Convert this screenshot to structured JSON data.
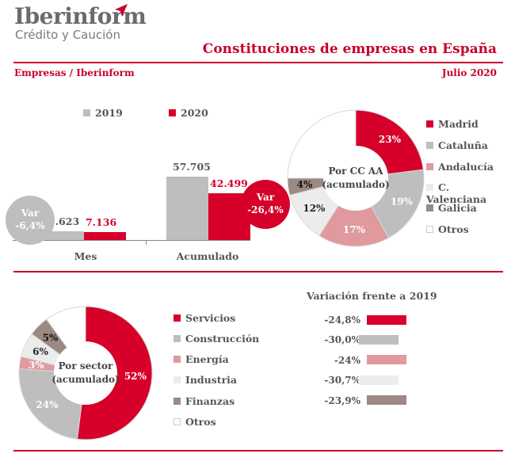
{
  "header": {
    "logo_main": "Iberinform",
    "logo_sub": "Crédito y Caución",
    "title": "Constituciones de empresas en España",
    "source": "Empresas / Iberinform",
    "date": "Julio 2020"
  },
  "colors": {
    "brand_red": "#d6002a",
    "grey": "#bebebe",
    "pink": "#e0999c",
    "light": "#ececec",
    "taupe": "#9c8982",
    "white": "#ffffff"
  },
  "icons": {
    "logo": "plane-icon"
  },
  "chart_data": [
    {
      "type": "bar",
      "categories": [
        "Mes",
        "Acumulado"
      ],
      "series": [
        {
          "name": "2019",
          "color": "#bebebe",
          "values": [
            7623,
            57705
          ],
          "labels": [
            "7.623",
            "57.705"
          ]
        },
        {
          "name": "2020",
          "color": "#d6002a",
          "values": [
            7136,
            42499
          ],
          "labels": [
            "7.136",
            "42.499"
          ]
        }
      ],
      "annotations": [
        {
          "category": "Mes",
          "text_top": "Var",
          "text_bottom": "-6,4%",
          "color": "#bebebe"
        },
        {
          "category": "Acumulado",
          "text_top": "Var",
          "text_bottom": "-26,4%",
          "color": "#d6002a"
        }
      ],
      "legend": "top"
    },
    {
      "type": "pie",
      "center_label": [
        "Por CC AA",
        "(acumulado)"
      ],
      "slices": [
        {
          "name": "Madrid",
          "value": 23,
          "label": "23%",
          "color": "#d6002a"
        },
        {
          "name": "Cataluña",
          "value": 19,
          "label": "19%",
          "color": "#bebebe"
        },
        {
          "name": "Andalucía",
          "value": 17,
          "label": "17%",
          "color": "#e0999c"
        },
        {
          "name": "C. Valenciana",
          "value": 12,
          "label": "12%",
          "color": "#ececec"
        },
        {
          "name": "Galicia",
          "value": 4,
          "label": "4%",
          "color": "#9c8982"
        },
        {
          "name": "Otros",
          "value": 25,
          "label": "",
          "color": "#ffffff"
        }
      ],
      "legend": "right"
    },
    {
      "type": "pie",
      "center_label": [
        "Por sector",
        "(acumulado)"
      ],
      "slices": [
        {
          "name": "Servicios",
          "value": 52,
          "label": "52%",
          "color": "#d6002a"
        },
        {
          "name": "Construcción",
          "value": 24,
          "label": "24%",
          "color": "#bebebe"
        },
        {
          "name": "Energía",
          "value": 3,
          "label": "3%",
          "color": "#e0999c"
        },
        {
          "name": "Industria",
          "value": 6,
          "label": "6%",
          "color": "#ececec"
        },
        {
          "name": "Finanzas",
          "value": 5,
          "label": "5%",
          "color": "#9c8982"
        },
        {
          "name": "Otros",
          "value": 10,
          "label": "",
          "color": "#ffffff"
        }
      ],
      "legend": "right"
    },
    {
      "type": "bar",
      "title": "Variación frente a 2019",
      "items": [
        {
          "label": "-24,8%",
          "value": -24.8,
          "color": "#d6002a"
        },
        {
          "label": "-30,0%",
          "value": -30.0,
          "color": "#bebebe"
        },
        {
          "label": "-24%",
          "value": -24,
          "color": "#e0999c"
        },
        {
          "label": "-30,7%",
          "value": -30.7,
          "color": "#ececec"
        },
        {
          "label": "-23,9%",
          "value": -23.9,
          "color": "#9c8982"
        }
      ]
    }
  ]
}
